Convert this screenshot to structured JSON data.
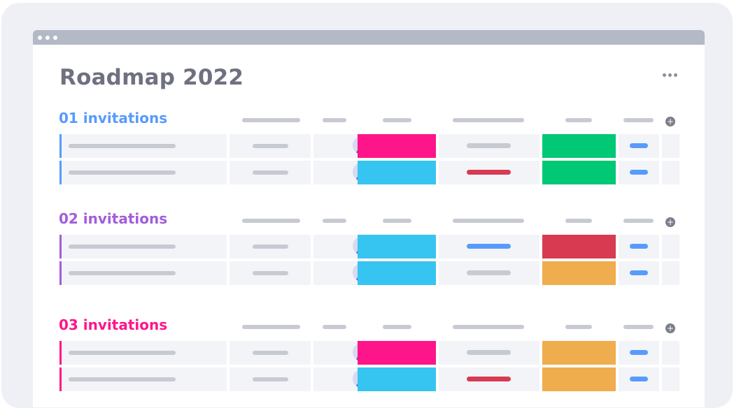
{
  "page": {
    "title": "Roadmap 2022"
  },
  "colors": {
    "frame": "#eef0f5",
    "titlebar": "#b3bac6",
    "title_text": "#6f7180",
    "placeholder_bar": "#c7cad3",
    "cell_bg": "#f3f4f7",
    "avatar_bg": "#d8d9f2",
    "avatar_fg": "#5755d9",
    "status_blue": "#579bfc"
  },
  "groups": [
    {
      "title": "01 invitations",
      "color": "#579bfc",
      "rows": [
        {
          "status_color": "#ff158a",
          "pill_color": "#c7cad3",
          "date_color": "#00c875"
        },
        {
          "status_color": "#36c5f0",
          "pill_color": "#d83a52",
          "date_color": "#00c875"
        }
      ]
    },
    {
      "title": "02 invitations",
      "color": "#a25ddc",
      "rows": [
        {
          "status_color": "#36c5f0",
          "pill_color": "#579bfc",
          "date_color": "#d83a52"
        },
        {
          "status_color": "#36c5f0",
          "pill_color": "#c7cad3",
          "date_color": "#f0ad4e"
        }
      ]
    },
    {
      "title": "03 invitations",
      "color": "#ff158a",
      "rows": [
        {
          "status_color": "#ff158a",
          "pill_color": "#c7cad3",
          "date_color": "#f0ad4e"
        },
        {
          "status_color": "#36c5f0",
          "pill_color": "#d83a52",
          "date_color": "#f0ad4e"
        }
      ]
    }
  ]
}
